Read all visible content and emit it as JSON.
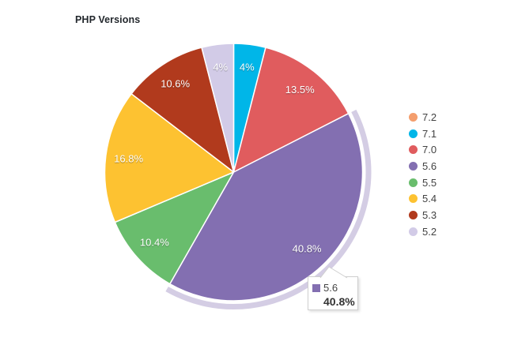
{
  "chart_data": {
    "type": "pie",
    "title": "PHP Versions",
    "legend_position": "right",
    "direction": "clockwise",
    "start_angle_deg": 0,
    "series": [
      {
        "label": "7.2",
        "value": 0,
        "display": "",
        "color": "#f49e6d",
        "selected": false
      },
      {
        "label": "7.1",
        "value": 4,
        "display": "4%",
        "color": "#00b6e8",
        "selected": false
      },
      {
        "label": "7.0",
        "value": 13.5,
        "display": "13.5%",
        "color": "#e05c5e",
        "selected": false
      },
      {
        "label": "5.6",
        "value": 40.8,
        "display": "40.8%",
        "color": "#836fb1",
        "selected": true
      },
      {
        "label": "5.5",
        "value": 10.4,
        "display": "10.4%",
        "color": "#69bd6d",
        "selected": false
      },
      {
        "label": "5.4",
        "value": 16.8,
        "display": "16.8%",
        "color": "#fdc231",
        "selected": false
      },
      {
        "label": "5.3",
        "value": 10.6,
        "display": "10.6%",
        "color": "#b13a1d",
        "selected": false
      },
      {
        "label": "5.2",
        "value": 4,
        "display": "4%",
        "color": "#d2cbe7",
        "selected": false
      }
    ],
    "legend_labels": [
      "7.2",
      "7.1",
      "7.0",
      "5.6",
      "5.5",
      "5.4",
      "5.3",
      "5.2"
    ]
  },
  "tooltip": {
    "label": "5.6",
    "value": "40.8%",
    "color": "#836fb1"
  },
  "palette": {
    "slice_border": "#ffffff",
    "label_text": "#ffffff",
    "legend_text": "#424242",
    "title_text": "#23282d"
  }
}
